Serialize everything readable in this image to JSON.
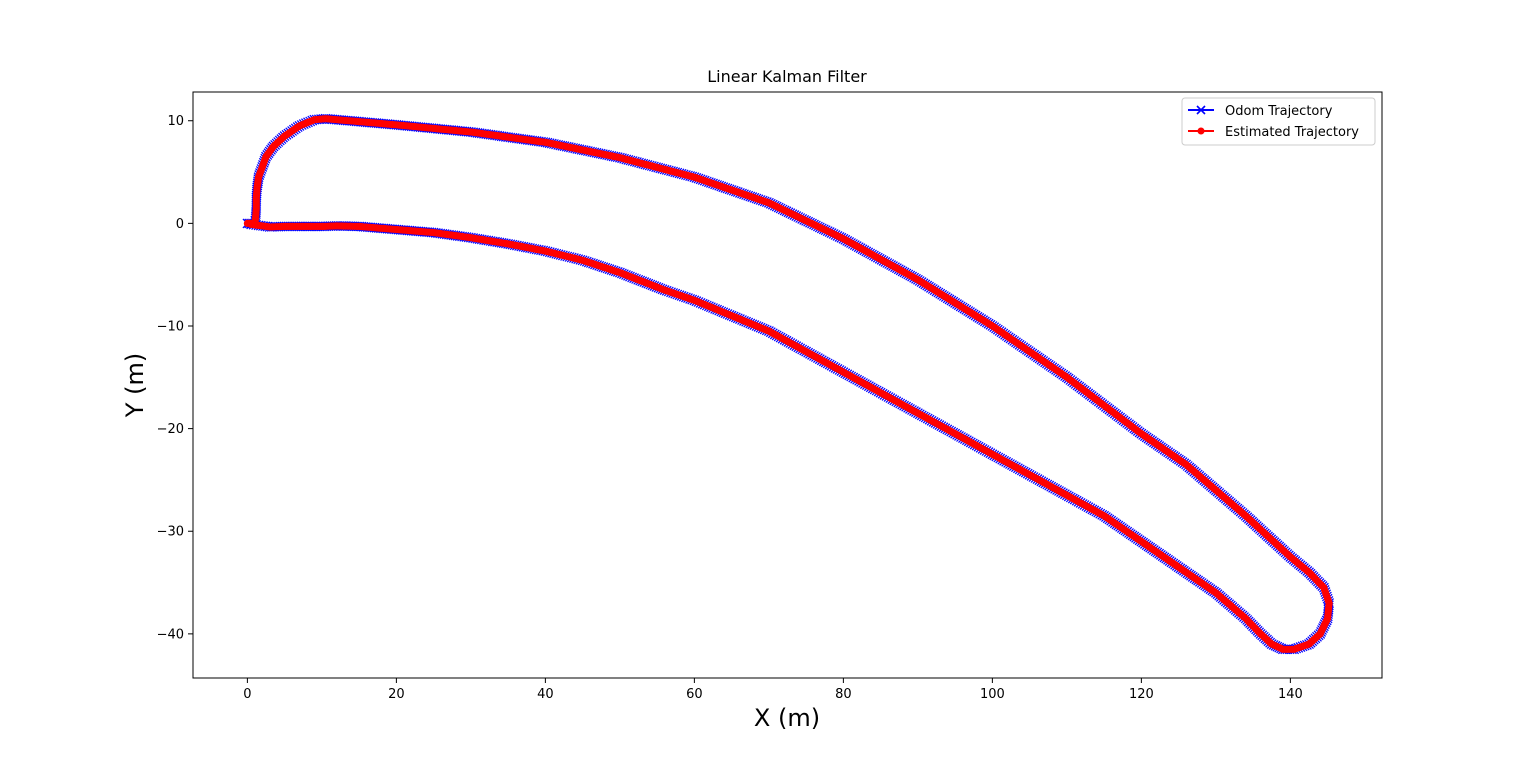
{
  "chart_data": {
    "type": "line",
    "title": "Linear Kalman Filter",
    "xlabel": "X (m)",
    "ylabel": "Y (m)",
    "xlim": [
      -7.3,
      152.3
    ],
    "ylim": [
      -44.3,
      12.8
    ],
    "xticks": [
      0,
      20,
      40,
      60,
      80,
      100,
      120,
      140
    ],
    "yticks": [
      10,
      0,
      -10,
      -20,
      -30,
      -40
    ],
    "xtick_labels": [
      "0",
      "20",
      "40",
      "60",
      "80",
      "100",
      "120",
      "140"
    ],
    "ytick_labels": [
      "10",
      "0",
      "−10",
      "−20",
      "−30",
      "−40"
    ],
    "grid": false,
    "legend_position": "upper right",
    "series": [
      {
        "name": "Odom Trajectory",
        "color": "#0000ff",
        "marker": "x",
        "x": [
          0,
          0.5,
          1.0,
          1.1,
          1.2,
          1.2,
          1.3,
          1.5,
          2.0,
          2.5,
          3.5,
          5.0,
          7.0,
          9.0,
          10.5,
          12.0,
          20.0,
          30.0,
          40.0,
          50.0,
          60.0,
          70.0,
          80.0,
          90.0,
          100.0,
          110.0,
          120.0,
          126.0,
          130.0,
          134.0,
          137.0,
          140.0,
          142.5,
          144.5,
          145.2,
          145.0,
          144.0,
          142.5,
          140.5,
          139.0,
          137.5,
          136.0,
          134.0,
          130.0,
          125.0,
          120.0,
          115.0,
          110.0,
          105.0,
          100.0,
          95.0,
          90.0,
          85.0,
          80.0,
          75.0,
          70.0,
          65.0,
          60.0,
          56.0,
          50.0,
          45.0,
          40.0,
          35.0,
          30.0,
          25.0,
          20.0,
          15.0,
          12.0,
          10.0,
          7.0,
          5.0,
          3.0,
          1.5,
          0.5
        ],
        "y": [
          0,
          0,
          0,
          0.5,
          1.5,
          2.5,
          3.5,
          4.5,
          5.5,
          6.5,
          7.5,
          8.5,
          9.5,
          10.1,
          10.2,
          10.1,
          9.6,
          8.9,
          7.9,
          6.4,
          4.5,
          2.0,
          -1.5,
          -5.5,
          -10.0,
          -15.0,
          -20.5,
          -23.5,
          -26.0,
          -28.5,
          -30.5,
          -32.5,
          -34.0,
          -35.5,
          -37.0,
          -38.5,
          -40.0,
          -41.0,
          -41.5,
          -41.5,
          -41.0,
          -40.0,
          -38.5,
          -36.0,
          -33.5,
          -31.0,
          -28.5,
          -26.5,
          -24.5,
          -22.5,
          -20.5,
          -18.5,
          -16.5,
          -14.5,
          -12.5,
          -10.5,
          -9.0,
          -7.5,
          -6.5,
          -4.8,
          -3.6,
          -2.7,
          -2.0,
          -1.4,
          -0.9,
          -0.6,
          -0.3,
          -0.25,
          -0.3,
          -0.3,
          -0.3,
          -0.35,
          -0.2,
          -0.1
        ]
      },
      {
        "name": "Estimated Trajectory",
        "color": "#ff0000",
        "marker": "o",
        "x": [
          0,
          0.5,
          1.0,
          1.1,
          1.2,
          1.2,
          1.3,
          1.5,
          2.0,
          2.5,
          3.5,
          5.0,
          7.0,
          9.0,
          10.5,
          12.0,
          20.0,
          30.0,
          40.0,
          50.0,
          60.0,
          70.0,
          80.0,
          90.0,
          100.0,
          110.0,
          120.0,
          126.0,
          130.0,
          134.0,
          137.0,
          140.0,
          142.5,
          144.5,
          145.2,
          145.0,
          144.0,
          142.5,
          140.5,
          139.0,
          137.5,
          136.0,
          134.0,
          130.0,
          125.0,
          120.0,
          115.0,
          110.0,
          105.0,
          100.0,
          95.0,
          90.0,
          85.0,
          80.0,
          75.0,
          70.0,
          65.0,
          60.0,
          56.0,
          50.0,
          45.0,
          40.0,
          35.0,
          30.0,
          25.0,
          20.0,
          15.0,
          12.0,
          10.0,
          7.0,
          5.0,
          3.0,
          1.5,
          0.5
        ],
        "y": [
          0,
          0,
          0,
          0.5,
          1.5,
          2.5,
          3.5,
          4.5,
          5.5,
          6.5,
          7.5,
          8.5,
          9.5,
          10.1,
          10.2,
          10.1,
          9.6,
          8.9,
          7.9,
          6.4,
          4.5,
          2.0,
          -1.5,
          -5.5,
          -10.0,
          -15.0,
          -20.5,
          -23.5,
          -26.0,
          -28.5,
          -30.5,
          -32.5,
          -34.0,
          -35.5,
          -37.0,
          -38.5,
          -40.0,
          -41.0,
          -41.5,
          -41.5,
          -41.0,
          -40.0,
          -38.5,
          -36.0,
          -33.5,
          -31.0,
          -28.5,
          -26.5,
          -24.5,
          -22.5,
          -20.5,
          -18.5,
          -16.5,
          -14.5,
          -12.5,
          -10.5,
          -9.0,
          -7.5,
          -6.5,
          -4.8,
          -3.6,
          -2.7,
          -2.0,
          -1.4,
          -0.9,
          -0.6,
          -0.3,
          -0.25,
          -0.3,
          -0.3,
          -0.3,
          -0.35,
          -0.2,
          -0.1
        ]
      }
    ]
  }
}
